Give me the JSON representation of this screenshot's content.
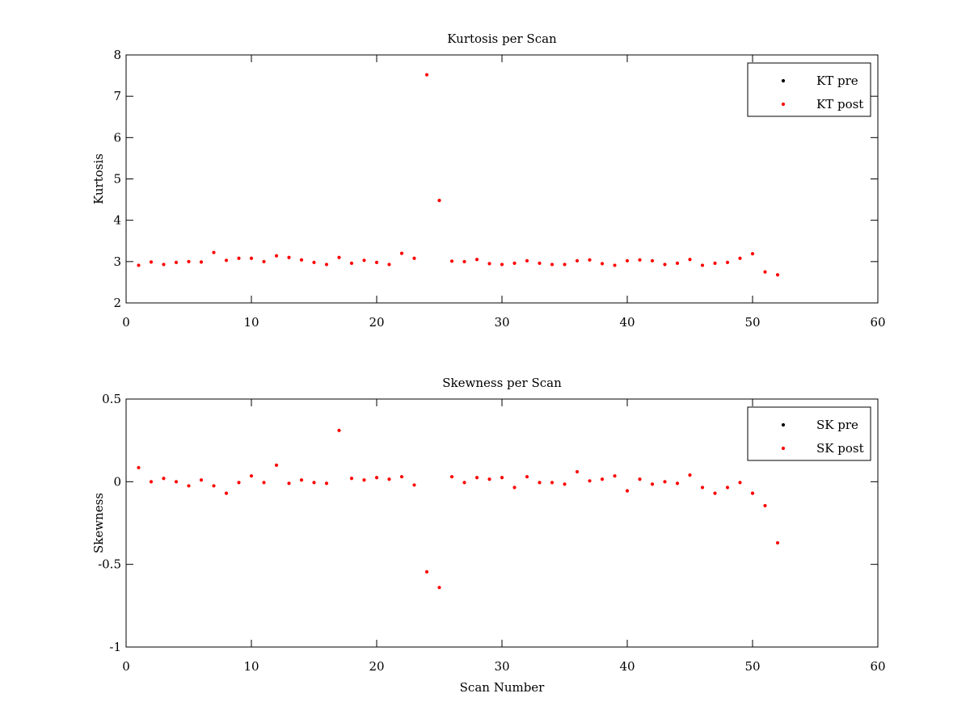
{
  "chart_data": [
    {
      "type": "scatter",
      "title": "Kurtosis per Scan",
      "xlabel": "",
      "ylabel": "Kurtosis",
      "xlim": [
        0,
        60
      ],
      "ylim": [
        2,
        8
      ],
      "xticks": [
        0,
        10,
        20,
        30,
        40,
        50,
        60
      ],
      "yticks": [
        2,
        3,
        4,
        5,
        6,
        7,
        8
      ],
      "grid": false,
      "legend_position": "top-right",
      "series": [
        {
          "name": "KT pre",
          "color": "#000000",
          "x": [],
          "y": []
        },
        {
          "name": "KT post",
          "color": "#ff0000",
          "x": [
            1,
            2,
            3,
            4,
            5,
            6,
            7,
            8,
            9,
            10,
            11,
            12,
            13,
            14,
            15,
            16,
            17,
            18,
            19,
            20,
            21,
            22,
            23,
            24,
            25,
            26,
            27,
            28,
            29,
            30,
            31,
            32,
            33,
            34,
            35,
            36,
            37,
            38,
            39,
            40,
            41,
            42,
            43,
            44,
            45,
            46,
            47,
            48,
            49,
            50,
            51,
            52
          ],
          "y": [
            2.91,
            2.99,
            2.93,
            2.98,
            3.0,
            2.99,
            3.22,
            3.03,
            3.08,
            3.08,
            3.0,
            3.14,
            3.1,
            3.04,
            2.98,
            2.93,
            3.1,
            2.96,
            3.03,
            2.98,
            2.93,
            3.2,
            3.08,
            7.52,
            4.48,
            3.01,
            3.0,
            3.05,
            2.95,
            2.93,
            2.96,
            3.02,
            2.96,
            2.93,
            2.93,
            3.02,
            3.04,
            2.95,
            2.91,
            3.02,
            3.04,
            3.02,
            2.93,
            2.96,
            3.05,
            2.91,
            2.96,
            2.98,
            3.08,
            3.19,
            2.75,
            2.68
          ]
        }
      ]
    },
    {
      "type": "scatter",
      "title": "Skewness per Scan",
      "xlabel": "Scan Number",
      "ylabel": "Skewness",
      "xlim": [
        0,
        60
      ],
      "ylim": [
        -1,
        0.5
      ],
      "xticks": [
        0,
        10,
        20,
        30,
        40,
        50,
        60
      ],
      "yticks": [
        -1,
        -0.5,
        0,
        0.5
      ],
      "grid": false,
      "legend_position": "top-right",
      "series": [
        {
          "name": "SK pre",
          "color": "#000000",
          "x": [],
          "y": []
        },
        {
          "name": "SK post",
          "color": "#ff0000",
          "x": [
            1,
            2,
            3,
            4,
            5,
            6,
            7,
            8,
            9,
            10,
            11,
            12,
            13,
            14,
            15,
            16,
            17,
            18,
            19,
            20,
            21,
            22,
            23,
            24,
            25,
            26,
            27,
            28,
            29,
            30,
            31,
            32,
            33,
            34,
            35,
            36,
            37,
            38,
            39,
            40,
            41,
            42,
            43,
            44,
            45,
            46,
            47,
            48,
            49,
            50,
            51,
            52
          ],
          "y": [
            0.085,
            0.0,
            0.02,
            0.0,
            -0.025,
            0.01,
            -0.025,
            -0.07,
            -0.005,
            0.035,
            -0.005,
            0.1,
            -0.01,
            0.01,
            -0.005,
            -0.01,
            0.31,
            0.02,
            0.01,
            0.025,
            0.015,
            0.03,
            -0.02,
            -0.545,
            -0.64,
            0.03,
            -0.005,
            0.025,
            0.015,
            0.025,
            -0.035,
            0.03,
            -0.005,
            -0.005,
            -0.015,
            0.06,
            0.005,
            0.015,
            0.035,
            -0.055,
            0.015,
            -0.015,
            0.0,
            -0.01,
            0.04,
            -0.035,
            -0.07,
            -0.035,
            -0.005,
            -0.07,
            -0.145,
            -0.37
          ]
        }
      ]
    }
  ]
}
